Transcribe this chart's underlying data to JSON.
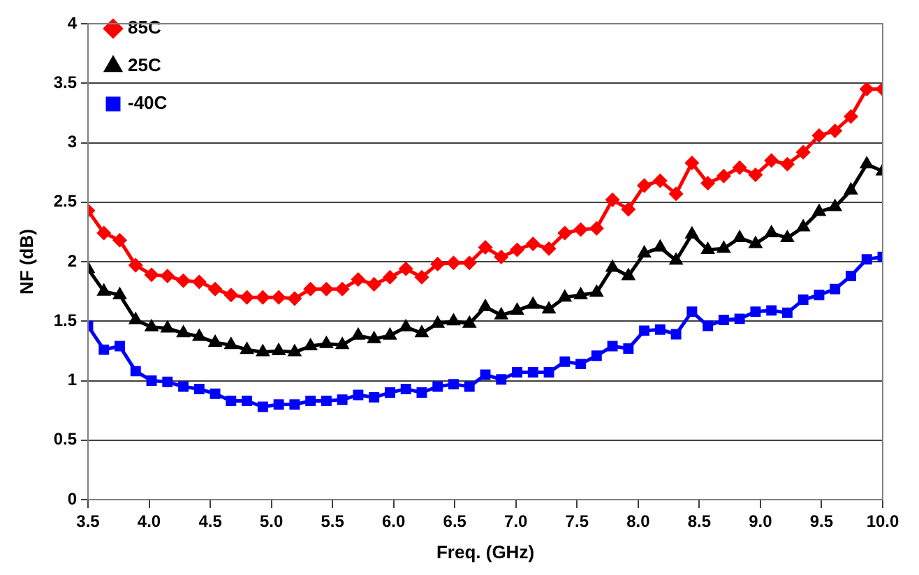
{
  "chart_data": {
    "type": "line",
    "xlabel": "Freq. (GHz)",
    "ylabel": "NF (dB)",
    "x": [
      3.5,
      3.63,
      3.76,
      3.89,
      4.02,
      4.15,
      4.28,
      4.41,
      4.54,
      4.67,
      4.8,
      4.93,
      5.06,
      5.19,
      5.32,
      5.45,
      5.58,
      5.71,
      5.84,
      5.97,
      6.1,
      6.23,
      6.36,
      6.49,
      6.62,
      6.75,
      6.88,
      7.01,
      7.14,
      7.27,
      7.4,
      7.53,
      7.66,
      7.79,
      7.92,
      8.05,
      8.18,
      8.31,
      8.44,
      8.57,
      8.7,
      8.83,
      8.96,
      9.09,
      9.22,
      9.35,
      9.48,
      9.61,
      9.74,
      9.87,
      10.0
    ],
    "series": [
      {
        "name": "85C",
        "color": "#ff0000",
        "marker": "diamond",
        "values": [
          2.43,
          2.24,
          2.18,
          1.97,
          1.89,
          1.88,
          1.84,
          1.83,
          1.77,
          1.72,
          1.7,
          1.7,
          1.7,
          1.69,
          1.77,
          1.77,
          1.77,
          1.85,
          1.81,
          1.87,
          1.94,
          1.87,
          1.98,
          1.99,
          1.99,
          2.12,
          2.04,
          2.1,
          2.15,
          2.11,
          2.24,
          2.27,
          2.28,
          2.52,
          2.44,
          2.64,
          2.68,
          2.57,
          2.83,
          2.66,
          2.72,
          2.79,
          2.73,
          2.85,
          2.82,
          2.92,
          3.06,
          3.1,
          3.22,
          3.45,
          3.45
        ]
      },
      {
        "name": "25C",
        "color": "#000000",
        "marker": "triangle",
        "values": [
          1.94,
          1.75,
          1.72,
          1.51,
          1.45,
          1.44,
          1.4,
          1.37,
          1.32,
          1.3,
          1.26,
          1.24,
          1.25,
          1.24,
          1.29,
          1.31,
          1.3,
          1.38,
          1.35,
          1.38,
          1.45,
          1.4,
          1.48,
          1.5,
          1.48,
          1.62,
          1.55,
          1.59,
          1.64,
          1.6,
          1.7,
          1.72,
          1.74,
          1.95,
          1.88,
          2.07,
          2.12,
          2.01,
          2.23,
          2.1,
          2.11,
          2.2,
          2.15,
          2.24,
          2.2,
          2.29,
          2.42,
          2.46,
          2.6,
          2.82,
          2.76
        ]
      },
      {
        "name": "-40C",
        "color": "#0000ff",
        "marker": "square",
        "values": [
          1.46,
          1.26,
          1.29,
          1.08,
          1.0,
          0.99,
          0.95,
          0.93,
          0.89,
          0.83,
          0.83,
          0.78,
          0.8,
          0.8,
          0.83,
          0.83,
          0.84,
          0.88,
          0.86,
          0.9,
          0.93,
          0.9,
          0.95,
          0.97,
          0.95,
          1.05,
          1.01,
          1.07,
          1.07,
          1.07,
          1.16,
          1.14,
          1.21,
          1.29,
          1.27,
          1.42,
          1.43,
          1.39,
          1.58,
          1.46,
          1.51,
          1.52,
          1.58,
          1.59,
          1.57,
          1.68,
          1.72,
          1.77,
          1.88,
          2.02,
          2.04
        ]
      }
    ],
    "xlim": [
      3.5,
      10.0
    ],
    "xticks": [
      3.5,
      {
        "value": 4,
        "label": "4.0"
      },
      4.5,
      {
        "value": 5,
        "label": "5.0"
      },
      5.5,
      {
        "value": 6,
        "label": "6.0"
      },
      6.5,
      {
        "value": 7,
        "label": "7.0"
      },
      7.5,
      {
        "value": 8,
        "label": "8.0"
      },
      8.5,
      {
        "value": 9,
        "label": "9.0"
      },
      9.5,
      {
        "value": 10,
        "label": "10.0"
      }
    ],
    "ylim": [
      0,
      4
    ],
    "yticks": [
      0,
      0.5,
      1,
      1.5,
      2,
      2.5,
      3,
      3.5,
      4
    ],
    "grid": "y",
    "legend": "top left",
    "line_style": "solid"
  }
}
